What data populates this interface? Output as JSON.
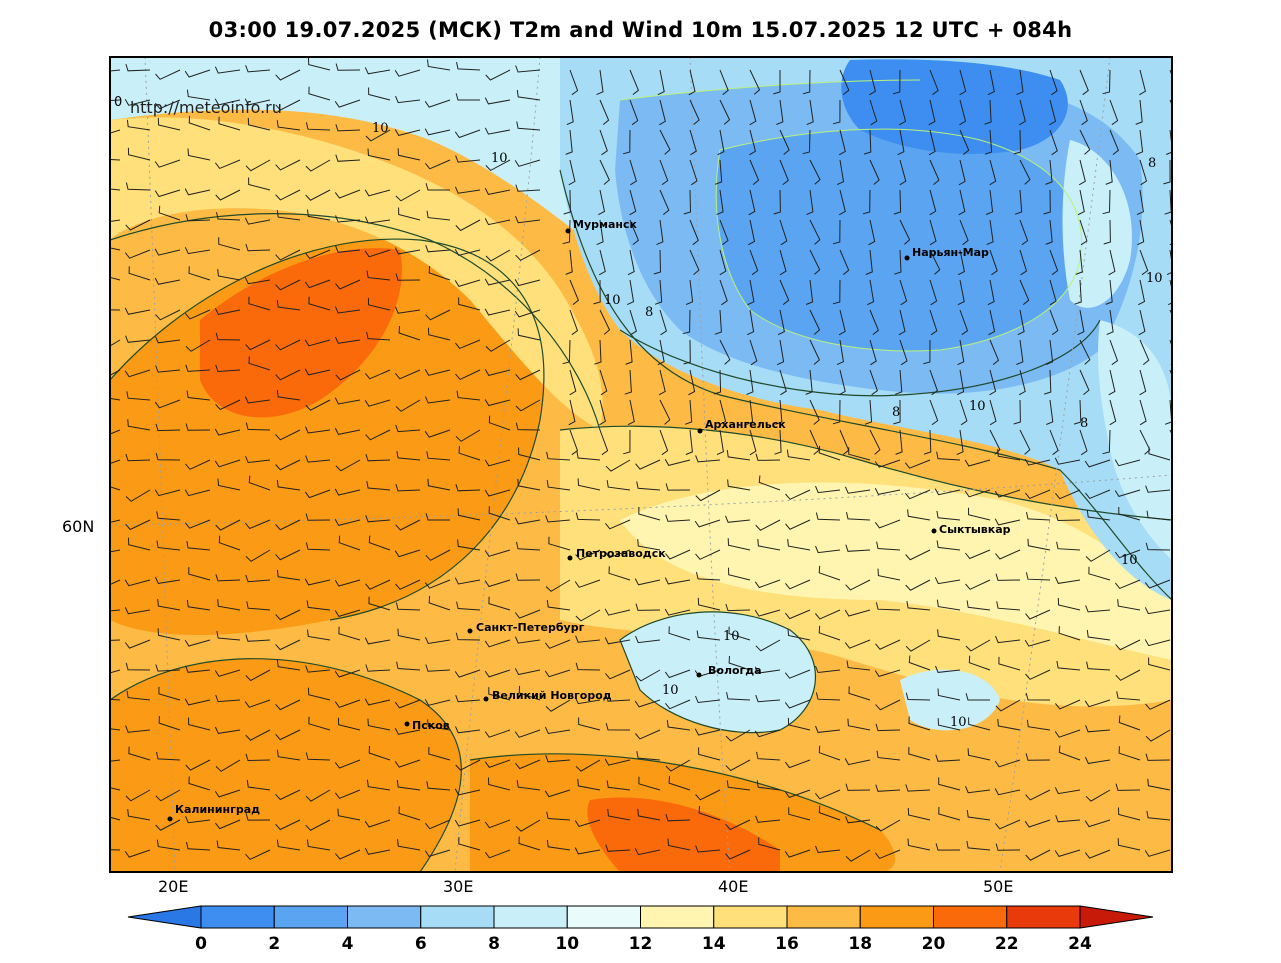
{
  "title": "03:00 19.07.2025 (МСК) T2m and Wind 10m 15.07.2025 12 UTC + 084h",
  "watermark": "http://meteoinfo.ru",
  "corner_label": "0",
  "cities": [
    {
      "name": "Мурманск",
      "id": "murmansk"
    },
    {
      "name": "Нарьян-Мар",
      "id": "naryan-mar"
    },
    {
      "name": "Архангельск",
      "id": "arkhangelsk"
    },
    {
      "name": "Сыктывкар",
      "id": "syktyvkar"
    },
    {
      "name": "Петрозаводск",
      "id": "petrozavodsk"
    },
    {
      "name": "Санкт-Петербург",
      "id": "saint-petersburg"
    },
    {
      "name": "Вологда",
      "id": "vologda"
    },
    {
      "name": "Великий Новгород",
      "id": "veliky-novgorod"
    },
    {
      "name": "Псков",
      "id": "pskov"
    },
    {
      "name": "Калининград",
      "id": "kaliningrad"
    }
  ],
  "isolines": [
    "10",
    "10",
    "10",
    "8",
    "8",
    "10",
    "8",
    "10",
    "10",
    "10",
    "10",
    "10",
    "8"
  ],
  "lat_labels": [
    "60N"
  ],
  "lon_labels": [
    "20E",
    "30E",
    "40E",
    "50E"
  ],
  "colorbar": {
    "ticks": [
      "0",
      "2",
      "4",
      "6",
      "8",
      "10",
      "12",
      "14",
      "16",
      "18",
      "20",
      "22",
      "24"
    ],
    "colors": [
      "#2a78e6",
      "#3d8ef0",
      "#5aa4f2",
      "#7cbaf4",
      "#a6dcf5",
      "#c9f0f8",
      "#eafbfb",
      "#fff5b0",
      "#ffe07a",
      "#fdbb46",
      "#fb9a14",
      "#fb6a0a",
      "#e93a0c",
      "#c81a08"
    ]
  },
  "color_scale": {
    "cold_deep": "#3d8ef0",
    "cold": "#6fb0f2",
    "cool": "#a6dcf5",
    "mild": "#d4f5fa",
    "pale": "#fff5b0",
    "warm": "#ffe07a",
    "warmer": "#fdbb46",
    "hot": "#fb9a14",
    "hotter": "#fb6a0a",
    "hottest": "#e93a0c"
  }
}
